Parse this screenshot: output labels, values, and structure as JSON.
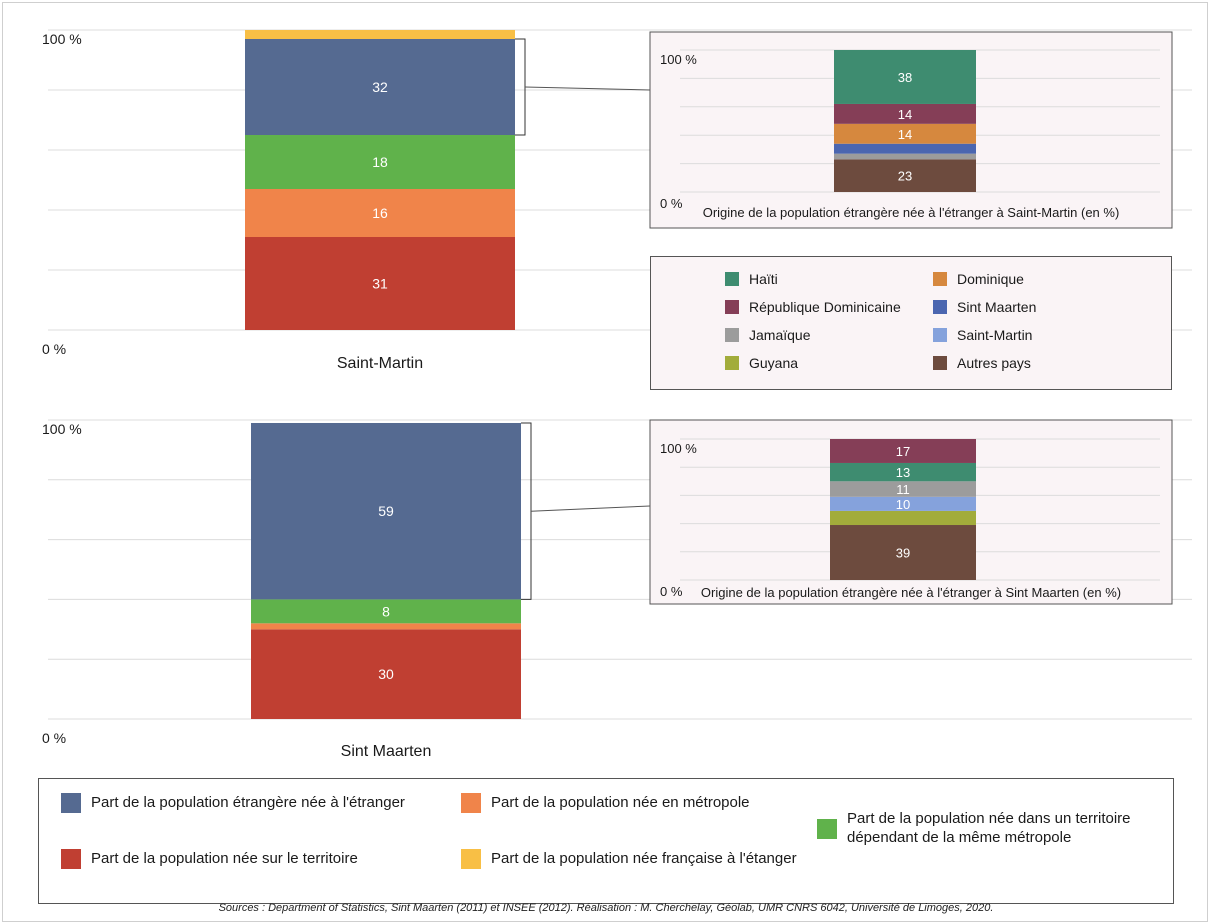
{
  "colors": {
    "foreign": "#556a91",
    "territory": "#c03f32",
    "metropole": "#f0844a",
    "dependent": "#60b24b",
    "french_abroad": "#f8bf45",
    "haiti": "#3e8c70",
    "dom_rep": "#853e57",
    "jamaique": "#9c9c9c",
    "guyana": "#a2ac3b",
    "dominique": "#d6883e",
    "sint_maarten": "#4b66b0",
    "saint_martin": "#85a2dc",
    "autres": "#6d4b3e"
  },
  "chart_data": [
    {
      "type": "bar",
      "stacked": true,
      "categories": [
        "Saint-Martin"
      ],
      "ylim": [
        0,
        100
      ],
      "ytick_labels": [
        "0 %",
        "100 %"
      ],
      "grid": true,
      "series": [
        {
          "name": "Part de la population née sur le territoire",
          "values": [
            31
          ],
          "label": "31",
          "color_key": "territory"
        },
        {
          "name": "Part de la population née en métropole",
          "values": [
            16
          ],
          "label": "16",
          "color_key": "metropole"
        },
        {
          "name": "Part de la population née dans un territoire dépendant de la même métropole",
          "values": [
            18
          ],
          "label": "18",
          "color_key": "dependent"
        },
        {
          "name": "Part de la population étrangère née à l'étranger",
          "values": [
            32
          ],
          "label": "32",
          "color_key": "foreign"
        },
        {
          "name": "Part de la population née française à l'étanger",
          "values": [
            3
          ],
          "label": "",
          "color_key": "french_abroad"
        }
      ]
    },
    {
      "type": "bar",
      "stacked": true,
      "title": "Origine de la population étrangère née à l'étranger à Saint-Martin (en %)",
      "categories": [
        ""
      ],
      "ylim": [
        0,
        100
      ],
      "ytick_labels": [
        "0 %",
        "100 %"
      ],
      "grid": true,
      "series": [
        {
          "name": "Autres pays",
          "values": [
            23
          ],
          "label": "23",
          "color_key": "autres"
        },
        {
          "name": "Jamaïque",
          "values": [
            4
          ],
          "label": "",
          "color_key": "jamaique"
        },
        {
          "name": "Sint Maarten",
          "values": [
            7
          ],
          "label": "",
          "color_key": "sint_maarten"
        },
        {
          "name": "Dominique",
          "values": [
            14
          ],
          "label": "14",
          "color_key": "dominique"
        },
        {
          "name": "République Dominicaine",
          "values": [
            14
          ],
          "label": "14",
          "color_key": "dom_rep"
        },
        {
          "name": "Haïti",
          "values": [
            38
          ],
          "label": "38",
          "color_key": "haiti"
        }
      ]
    },
    {
      "type": "bar",
      "stacked": true,
      "categories": [
        "Sint Maarten"
      ],
      "ylim": [
        0,
        100
      ],
      "ytick_labels": [
        "0 %",
        "100 %"
      ],
      "grid": true,
      "series": [
        {
          "name": "Part de la population née sur le territoire",
          "values": [
            30
          ],
          "label": "30",
          "color_key": "territory"
        },
        {
          "name": "Part de la population née en métropole",
          "values": [
            2
          ],
          "label": "",
          "color_key": "metropole"
        },
        {
          "name": "Part de la population née dans un territoire dépendant de la même métropole",
          "values": [
            8
          ],
          "label": "8",
          "color_key": "dependent"
        },
        {
          "name": "Part de la population étrangère née à l'étranger",
          "values": [
            59
          ],
          "label": "59",
          "color_key": "foreign"
        }
      ]
    },
    {
      "type": "bar",
      "stacked": true,
      "title": "Origine de la population étrangère née à l'étranger à Sint Maarten (en %)",
      "categories": [
        ""
      ],
      "ylim": [
        0,
        100
      ],
      "ytick_labels": [
        "0 %",
        "100 %"
      ],
      "grid": true,
      "series": [
        {
          "name": "Autres pays",
          "values": [
            39
          ],
          "label": "39",
          "color_key": "autres"
        },
        {
          "name": "Guyana",
          "values": [
            10
          ],
          "label": "",
          "color_key": "guyana"
        },
        {
          "name": "Saint-Martin",
          "values": [
            10
          ],
          "label": "10",
          "color_key": "saint_martin"
        },
        {
          "name": "Jamaïque",
          "values": [
            11
          ],
          "label": "11",
          "color_key": "jamaique"
        },
        {
          "name": "Haïti",
          "values": [
            13
          ],
          "label": "13",
          "color_key": "haiti"
        },
        {
          "name": "République Dominicaine",
          "values": [
            17
          ],
          "label": "17",
          "color_key": "dom_rep"
        }
      ]
    }
  ],
  "inset_legend": [
    {
      "label": "Haïti",
      "color_key": "haiti"
    },
    {
      "label": "Dominique",
      "color_key": "dominique"
    },
    {
      "label": "République Dominicaine",
      "color_key": "dom_rep"
    },
    {
      "label": "Sint Maarten",
      "color_key": "sint_maarten"
    },
    {
      "label": "Jamaïque",
      "color_key": "jamaique"
    },
    {
      "label": "Saint-Martin",
      "color_key": "saint_martin"
    },
    {
      "label": "Guyana",
      "color_key": "guyana"
    },
    {
      "label": "Autres pays",
      "color_key": "autres"
    }
  ],
  "main_legend": [
    {
      "label": "Part de la population étrangère née à l'étranger",
      "color_key": "foreign"
    },
    {
      "label": "Part de la population née en métropole",
      "color_key": "metropole"
    },
    {
      "label": "Part de la population née dans un territoire dépendant de la même métropole",
      "color_key": "dependent"
    },
    {
      "label": "Part de la population née sur le territoire",
      "color_key": "territory"
    },
    {
      "label": "Part de la population née française à l'étanger",
      "color_key": "french_abroad"
    }
  ],
  "source": "Sources : Department of Statistics, Sint Maarten (2011) et INSEE (2012). Réalisation : M. Cherchelay, Géolab, UMR CNRS 6042, Université de Limoges, 2020."
}
